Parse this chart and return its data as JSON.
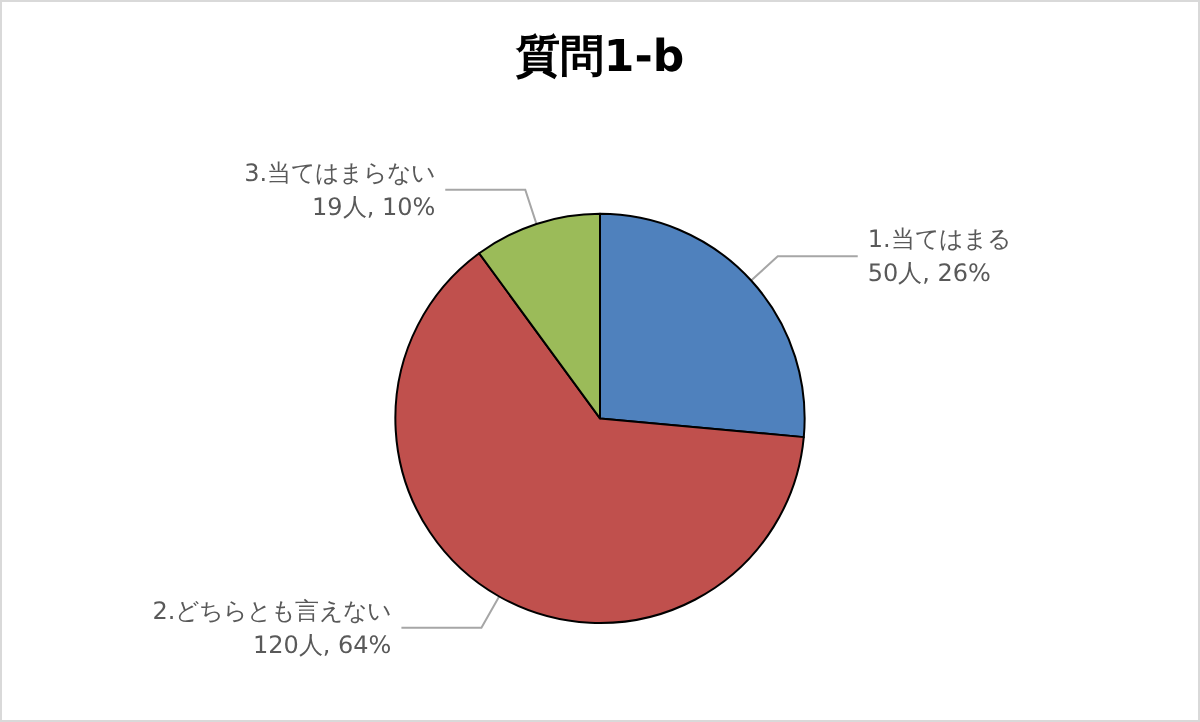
{
  "chart_data": {
    "type": "pie",
    "title": "質問1-b",
    "categories": [
      "1.当てはまる",
      "2.どちらとも言えない",
      "3.当てはまらない"
    ],
    "values": [
      50,
      120,
      19
    ],
    "value_labels": [
      "50人, 26%",
      "120人, 64%",
      "19人, 10%"
    ],
    "colors": [
      "#4f81bd",
      "#c0504d",
      "#9bbb59"
    ],
    "legend": false
  }
}
